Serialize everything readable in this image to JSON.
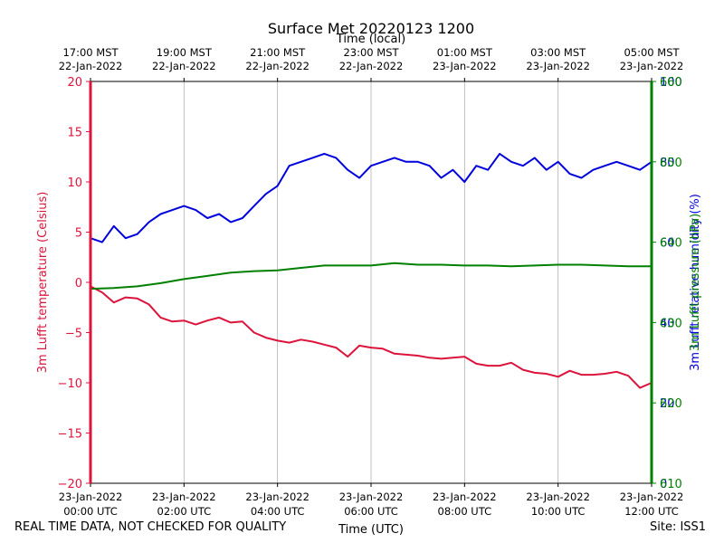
{
  "chart_data": {
    "type": "line",
    "title": "Surface Met 20220123 1200",
    "xlabel_bottom": "Time (UTC)",
    "xlabel_top": "Time (local)",
    "x_range_hours": [
      0,
      12
    ],
    "x_ticks_bottom": [
      {
        "hour": 0,
        "line1": "23-Jan-2022",
        "line2": "00:00 UTC"
      },
      {
        "hour": 2,
        "line1": "23-Jan-2022",
        "line2": "02:00 UTC"
      },
      {
        "hour": 4,
        "line1": "23-Jan-2022",
        "line2": "04:00 UTC"
      },
      {
        "hour": 6,
        "line1": "23-Jan-2022",
        "line2": "06:00 UTC"
      },
      {
        "hour": 8,
        "line1": "23-Jan-2022",
        "line2": "08:00 UTC"
      },
      {
        "hour": 10,
        "line1": "23-Jan-2022",
        "line2": "10:00 UTC"
      },
      {
        "hour": 12,
        "line1": "23-Jan-2022",
        "line2": "12:00 UTC"
      }
    ],
    "x_ticks_top": [
      {
        "hour": 0,
        "line1": "17:00 MST",
        "line2": "22-Jan-2022"
      },
      {
        "hour": 2,
        "line1": "19:00 MST",
        "line2": "22-Jan-2022"
      },
      {
        "hour": 4,
        "line1": "21:00 MST",
        "line2": "22-Jan-2022"
      },
      {
        "hour": 6,
        "line1": "23:00 MST",
        "line2": "22-Jan-2022"
      },
      {
        "hour": 8,
        "line1": "01:00 MST",
        "line2": "23-Jan-2022"
      },
      {
        "hour": 10,
        "line1": "03:00 MST",
        "line2": "23-Jan-2022"
      },
      {
        "hour": 12,
        "line1": "05:00 MST",
        "line2": "23-Jan-2022"
      }
    ],
    "left_axis": {
      "label": "3m Lufft temperature (Celsius)",
      "range": [
        -20,
        20
      ],
      "ticks": [
        -20,
        -15,
        -10,
        -5,
        0,
        5,
        10,
        15,
        20
      ],
      "tick_labels": [
        "−20",
        "−15",
        "−10",
        "−5",
        "0",
        "5",
        "10",
        "15",
        "20"
      ],
      "color": "#dc143c"
    },
    "right_axes": [
      {
        "label": "3m Lufft relative humidity (%)",
        "range": [
          0,
          100
        ],
        "ticks": [
          0,
          20,
          40,
          60,
          80,
          100
        ],
        "tick_labels": [
          "0",
          "20",
          "40",
          "60",
          "80",
          "100"
        ],
        "color": "#0000dd"
      },
      {
        "label": "3m Lufft pressure (hPa)",
        "range": [
          610,
          660
        ],
        "ticks": [
          610,
          620,
          630,
          640,
          650,
          660
        ],
        "tick_labels": [
          "610",
          "620",
          "630",
          "640",
          "650",
          "660"
        ],
        "color": "#008000"
      }
    ],
    "grid": "vertical",
    "series": [
      {
        "name": "3m Lufft temperature",
        "axis": "left",
        "color": "#dc143c",
        "x": [
          0,
          0.25,
          0.5,
          0.75,
          1,
          1.25,
          1.5,
          1.75,
          2,
          2.25,
          2.5,
          2.75,
          3,
          3.25,
          3.5,
          3.75,
          4,
          4.25,
          4.5,
          4.75,
          5,
          5.25,
          5.5,
          5.75,
          6,
          6.25,
          6.5,
          6.75,
          7,
          7.25,
          7.5,
          7.75,
          8,
          8.25,
          8.5,
          8.75,
          9,
          9.25,
          9.5,
          9.75,
          10,
          10.25,
          10.5,
          10.75,
          11,
          11.25,
          11.5,
          11.75,
          12
        ],
        "values": [
          -0.4,
          -1.0,
          -2.0,
          -1.5,
          -1.6,
          -2.2,
          -3.5,
          -3.9,
          -3.8,
          -4.2,
          -3.8,
          -3.5,
          -4.0,
          -3.9,
          -5.0,
          -5.5,
          -5.8,
          -6.0,
          -5.7,
          -5.9,
          -6.2,
          -6.5,
          -7.4,
          -6.3,
          -6.5,
          -6.6,
          -7.1,
          -7.2,
          -7.3,
          -7.5,
          -7.6,
          -7.5,
          -7.4,
          -8.1,
          -8.3,
          -8.3,
          -8.0,
          -8.7,
          -9.0,
          -9.1,
          -9.4,
          -8.8,
          -9.2,
          -9.2,
          -9.1,
          -8.9,
          -9.3,
          -10.5,
          -10.0
        ]
      },
      {
        "name": "3m Lufft relative humidity",
        "axis": "right-1",
        "color": "#0000dd",
        "x": [
          0,
          0.25,
          0.5,
          0.75,
          1,
          1.25,
          1.5,
          1.75,
          2,
          2.25,
          2.5,
          2.75,
          3,
          3.25,
          3.5,
          3.75,
          4,
          4.25,
          4.5,
          4.75,
          5,
          5.25,
          5.5,
          5.75,
          6,
          6.25,
          6.5,
          6.75,
          7,
          7.25,
          7.5,
          7.75,
          8,
          8.25,
          8.5,
          8.75,
          9,
          9.25,
          9.5,
          9.75,
          10,
          10.25,
          10.5,
          10.75,
          11,
          11.25,
          11.5,
          11.75,
          12
        ],
        "values": [
          61,
          60,
          64,
          61,
          62,
          65,
          67,
          68,
          69,
          68,
          66,
          67,
          65,
          66,
          69,
          72,
          74,
          79,
          80,
          81,
          82,
          81,
          78,
          76,
          79,
          80,
          81,
          80,
          80,
          79,
          76,
          78,
          75,
          79,
          78,
          82,
          80,
          79,
          81,
          78,
          80,
          77,
          76,
          78,
          79,
          80,
          79,
          78,
          80
        ]
      },
      {
        "name": "3m Lufft pressure",
        "axis": "right-2",
        "color": "#008000",
        "x": [
          0,
          0.5,
          1,
          1.5,
          2,
          2.5,
          3,
          3.5,
          4,
          4.5,
          5,
          5.5,
          6,
          6.5,
          7,
          7.5,
          8,
          8.5,
          9,
          9.5,
          10,
          10.5,
          11,
          11.5,
          12
        ],
        "values": [
          634.2,
          634.3,
          634.5,
          634.9,
          635.4,
          635.8,
          636.2,
          636.4,
          636.5,
          636.8,
          637.1,
          637.1,
          637.1,
          637.4,
          637.2,
          637.2,
          637.1,
          637.1,
          637.0,
          637.1,
          637.2,
          637.2,
          637.1,
          637.0,
          637.0
        ]
      }
    ]
  },
  "footer": {
    "left": "REAL TIME DATA, NOT CHECKED FOR QUALITY",
    "right": "Site: ISS1"
  }
}
